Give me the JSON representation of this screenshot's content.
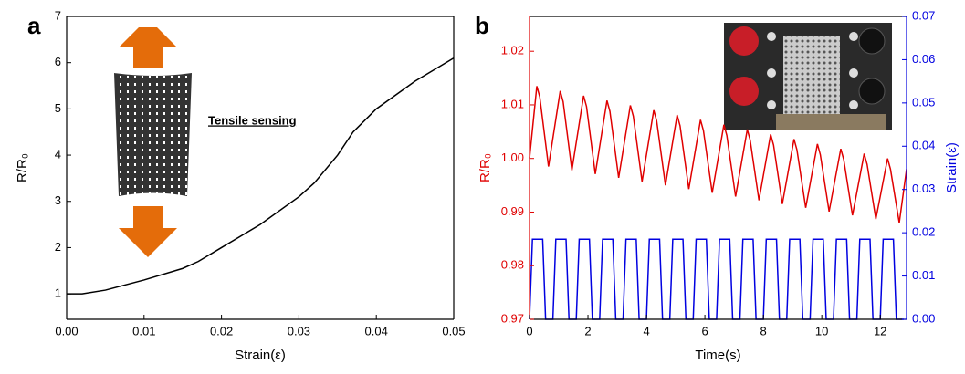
{
  "chart_data": [
    {
      "type": "line",
      "panel_label": "a",
      "xlabel": "Strain(ε)",
      "ylabel": "R/R₀",
      "annotation": "Tensile sensing",
      "xlim": [
        0,
        0.05
      ],
      "xticks": [
        {
          "value": 0,
          "label": "0.00"
        },
        0.01,
        0.02,
        0.03,
        0.04,
        0.05
      ],
      "ylim": [
        0.45,
        7
      ],
      "yticks": [
        1,
        2,
        3,
        4,
        5,
        6,
        7
      ],
      "series": [
        {
          "color": "#000000",
          "x": [
            0,
            0.002,
            0.005,
            0.01,
            0.015,
            0.017,
            0.02,
            0.025,
            0.03,
            0.032,
            0.035,
            0.037,
            0.04,
            0.045,
            0.05
          ],
          "values": [
            1,
            1.0,
            1.08,
            1.3,
            1.55,
            1.7,
            2.0,
            2.5,
            3.1,
            3.4,
            4.0,
            4.5,
            5.0,
            5.6,
            6.1
          ]
        }
      ]
    },
    {
      "type": "line",
      "panel_label": "b",
      "xlabel": "Time(s)",
      "ylabel": "R/R₀",
      "y2label": "Strain(ε)",
      "xlim": [
        0,
        12.9
      ],
      "xticks": [
        0,
        2,
        4,
        6,
        8,
        10,
        12
      ],
      "ylim": [
        0.97,
        1.0265
      ],
      "yticks": [
        0.97,
        0.98,
        0.99,
        {
          "value": 1,
          "label": "1.00"
        },
        1.01,
        1.02
      ],
      "y2lim": [
        0,
        0.07
      ],
      "y2ticks": [
        {
          "value": 0,
          "label": "0.00"
        },
        0.01,
        0.02,
        0.03,
        0.04,
        0.05,
        0.06,
        0.07
      ],
      "ycolor": "#e00000",
      "y2color": "#0000e0",
      "series": [
        {
          "color": "#e00000",
          "x": [
            0,
            0.25,
            0.35,
            0.65,
            1.05,
            1.15,
            1.45,
            1.85,
            1.95,
            2.25,
            2.65,
            2.75,
            3.05,
            3.45,
            3.55,
            3.85,
            4.25,
            4.35,
            4.65,
            5.05,
            5.15,
            5.45,
            5.85,
            5.95,
            6.25,
            6.65,
            6.75,
            7.05,
            7.45,
            7.55,
            7.85,
            8.25,
            8.35,
            8.65,
            9.05,
            9.15,
            9.45,
            9.85,
            9.95,
            10.25,
            10.65,
            10.75,
            11.05,
            11.45,
            11.55,
            11.85,
            12.25,
            12.35,
            12.65,
            12.9
          ],
          "values": [
            1.0,
            1.0135,
            1.0115,
            0.9985,
            1.0126,
            1.0106,
            0.9978,
            1.0117,
            1.0097,
            0.9971,
            1.0108,
            1.0088,
            0.9964,
            1.0099,
            1.0079,
            0.9957,
            1.009,
            1.007,
            0.995,
            1.0081,
            1.0061,
            0.9943,
            1.0072,
            1.0052,
            0.9936,
            1.0063,
            1.0043,
            0.9929,
            1.0054,
            1.0034,
            0.9922,
            1.0045,
            1.0025,
            0.9915,
            1.0036,
            1.0016,
            0.9908,
            1.0027,
            1.0007,
            0.9901,
            1.0018,
            0.9998,
            0.9894,
            1.0009,
            0.9989,
            0.9887,
            1.0,
            0.998,
            0.988,
            0.998
          ]
        },
        {
          "color": "#0000e0",
          "axis": "y2",
          "x": [
            0,
            0.1,
            0.45,
            0.55,
            0.8,
            0.9,
            1.25,
            1.35,
            1.6,
            1.7,
            2.05,
            2.15,
            2.4,
            2.5,
            2.85,
            2.95,
            3.2,
            3.3,
            3.65,
            3.75,
            4,
            4.1,
            4.45,
            4.55,
            4.8,
            4.9,
            5.25,
            5.35,
            5.6,
            5.7,
            6.05,
            6.15,
            6.4,
            6.5,
            6.85,
            6.95,
            7.2,
            7.3,
            7.65,
            7.75,
            8,
            8.1,
            8.45,
            8.55,
            8.8,
            8.9,
            9.25,
            9.35,
            9.6,
            9.7,
            10.05,
            10.15,
            10.4,
            10.5,
            10.85,
            10.95,
            11.2,
            11.3,
            11.65,
            11.75,
            12,
            12.1,
            12.45,
            12.55,
            12.8
          ],
          "values": [
            0,
            0.0185,
            0.0185,
            0,
            0,
            0.0185,
            0.0185,
            0,
            0,
            0.0185,
            0.0185,
            0,
            0,
            0.0185,
            0.0185,
            0,
            0,
            0.0185,
            0.0185,
            0,
            0,
            0.0185,
            0.0185,
            0,
            0,
            0.0185,
            0.0185,
            0,
            0,
            0.0185,
            0.0185,
            0,
            0,
            0.0185,
            0.0185,
            0,
            0,
            0.0185,
            0.0185,
            0,
            0,
            0.0185,
            0.0185,
            0,
            0,
            0.0185,
            0.0185,
            0,
            0,
            0.0185,
            0.0185,
            0,
            0,
            0.0185,
            0.0185,
            0,
            0,
            0.0185,
            0.0185,
            0,
            0,
            0.0185,
            0.0185,
            0,
            0
          ]
        }
      ]
    }
  ]
}
